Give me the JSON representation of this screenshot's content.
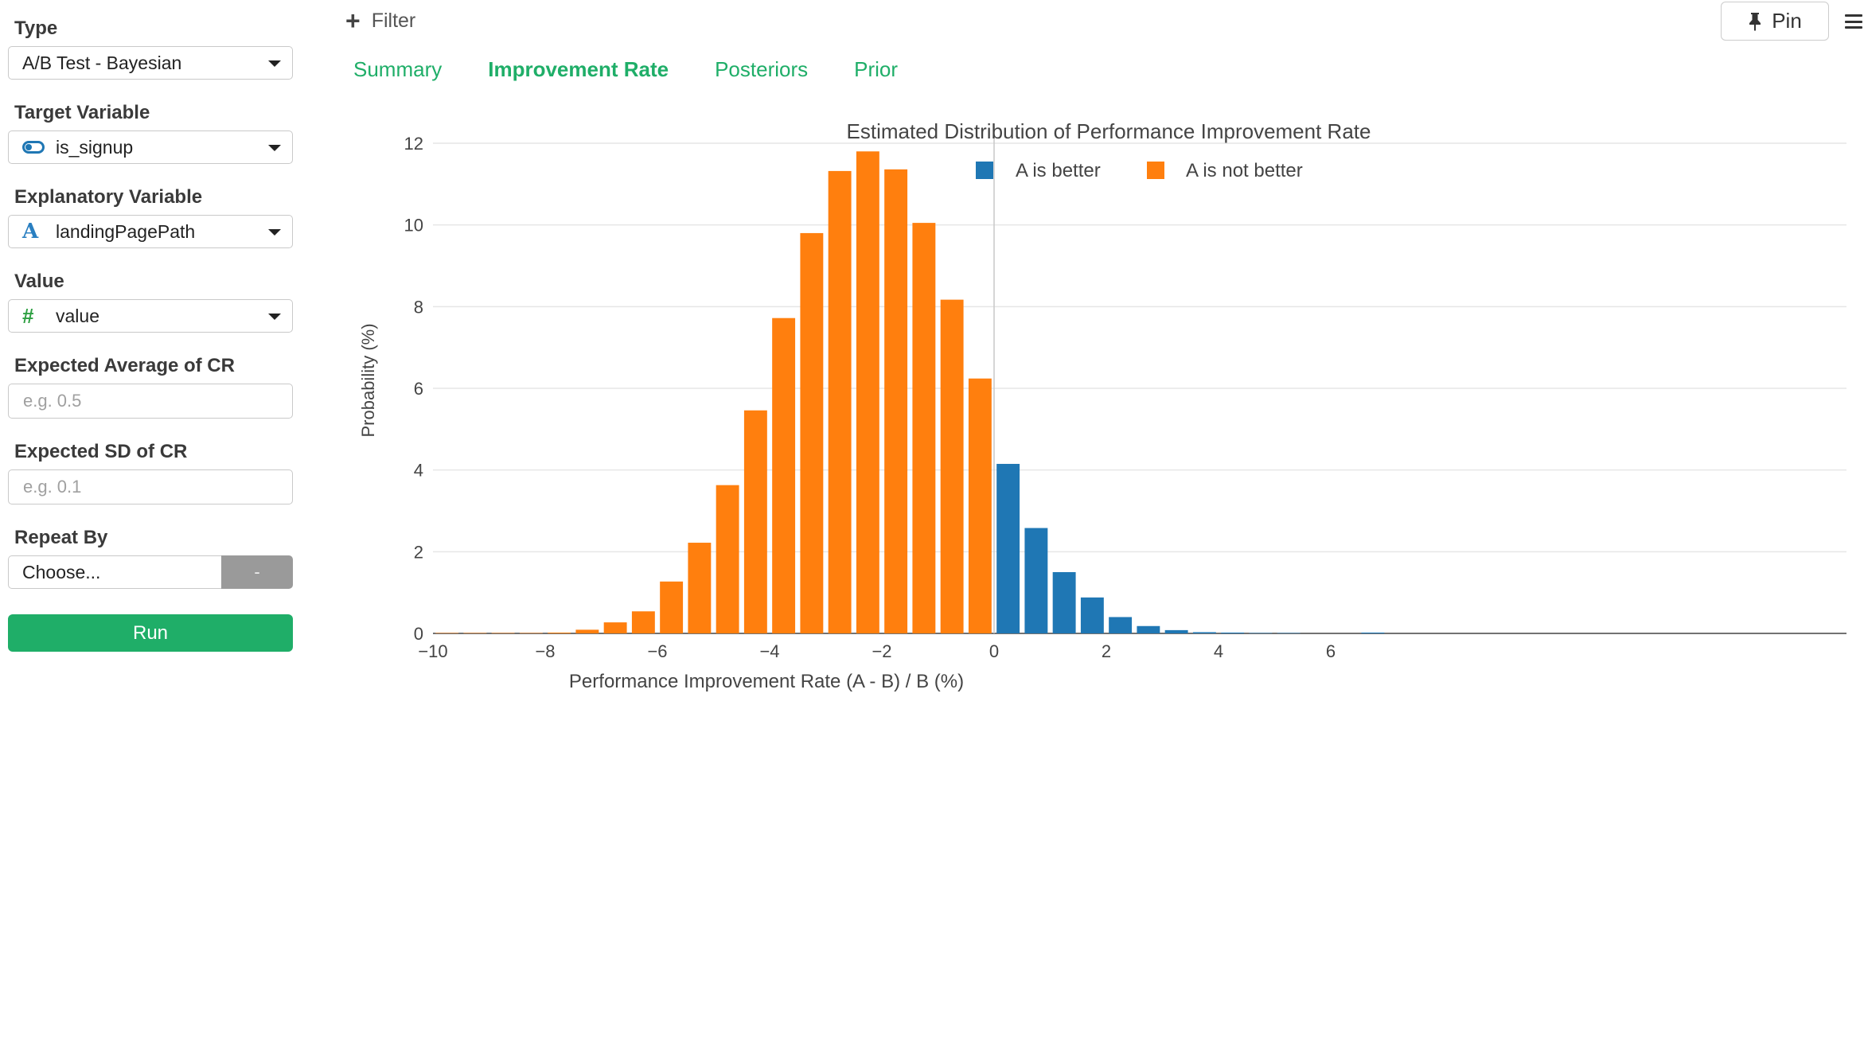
{
  "sidebar": {
    "type_label": "Type",
    "type_value": "A/B Test - Bayesian",
    "target_label": "Target Variable",
    "target_value": "is_signup",
    "target_icon": "toggle-icon",
    "explanatory_label": "Explanatory Variable",
    "explanatory_value": "landingPagePath",
    "explanatory_icon": "text-type-icon",
    "explanatory_icon_glyph": "A",
    "value_label": "Value",
    "value_value": "value",
    "value_icon": "number-type-icon",
    "value_icon_glyph": "#",
    "expected_avg_label": "Expected Average of CR",
    "expected_avg_placeholder": "e.g. 0.5",
    "expected_sd_label": "Expected SD of CR",
    "expected_sd_placeholder": "e.g. 0.1",
    "repeat_label": "Repeat By",
    "repeat_value": "Choose...",
    "repeat_minus": "-",
    "run_label": "Run"
  },
  "toolbar": {
    "filter_label": "Filter",
    "pin_label": "Pin"
  },
  "tabs": [
    {
      "label": "Summary",
      "active": false
    },
    {
      "label": "Improvement Rate",
      "active": true
    },
    {
      "label": "Posteriors",
      "active": false
    },
    {
      "label": "Prior",
      "active": false
    }
  ],
  "colors": {
    "accent": "#1fae68",
    "a_is_better": "#1f77b4",
    "a_is_not_better": "#ff7f0e"
  },
  "chart_data": {
    "type": "bar",
    "title": "Estimated Distribution of Performance Improvement Rate",
    "xlabel": "Performance Improvement Rate (A - B) / B (%)",
    "ylabel": "Probability (%)",
    "xlim": [
      -10,
      7
    ],
    "ylim": [
      0,
      12
    ],
    "xticks": [
      {
        "value": -10,
        "label": "−10"
      },
      {
        "value": -8,
        "label": "−8"
      },
      {
        "value": -6,
        "label": "−6"
      },
      {
        "value": -4,
        "label": "−4"
      },
      {
        "value": -2,
        "label": "−2"
      },
      {
        "value": 0,
        "label": "0"
      },
      {
        "value": 2,
        "label": "2"
      },
      {
        "value": 4,
        "label": "4"
      },
      {
        "value": 6,
        "label": "6"
      }
    ],
    "yticks": [
      0,
      2,
      4,
      6,
      8,
      10,
      12
    ],
    "grid": true,
    "legend_position": "top-center",
    "reference_line_x": 0,
    "bin_width": 0.5,
    "series": [
      {
        "name": "A is better",
        "color": "#1f77b4",
        "x": [
          0.25,
          0.75,
          1.25,
          1.75,
          2.25,
          2.75,
          3.25,
          3.75,
          4.25,
          4.75,
          5.25,
          5.75,
          6.25,
          6.75
        ],
        "values": [
          4.15,
          2.58,
          1.5,
          0.88,
          0.4,
          0.18,
          0.08,
          0.03,
          0.02,
          0.01,
          0.01,
          0.0,
          0.0,
          0.02
        ]
      },
      {
        "name": "A is not better",
        "color": "#ff7f0e",
        "x": [
          -9.75,
          -9.25,
          -8.75,
          -8.25,
          -7.75,
          -7.25,
          -6.75,
          -6.25,
          -5.75,
          -5.25,
          -4.75,
          -4.25,
          -3.75,
          -3.25,
          -2.75,
          -2.25,
          -1.75,
          -1.25,
          -0.75,
          -0.25
        ],
        "values": [
          0.01,
          0.01,
          0.01,
          0.01,
          0.02,
          0.09,
          0.27,
          0.54,
          1.27,
          2.22,
          3.63,
          5.46,
          7.72,
          9.8,
          11.32,
          11.8,
          11.36,
          10.05,
          8.17,
          6.24
        ]
      }
    ]
  }
}
